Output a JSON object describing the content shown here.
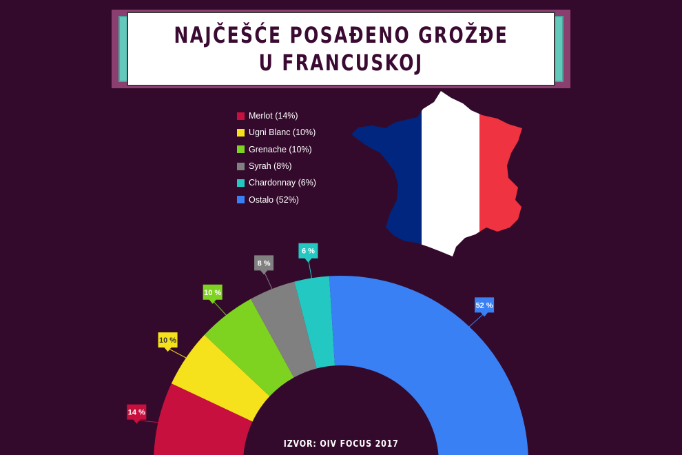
{
  "title": {
    "line1": "NAJČEŠĆE POSAĐENO GROŽĐE",
    "line2": "U FRANCUSKOJ"
  },
  "flag_colors": {
    "blue": "#00267f",
    "white": "#ffffff",
    "red": "#ef3340"
  },
  "source": "IZVOR: OIV FOCUS 2017",
  "chart_data": {
    "type": "pie",
    "variant": "semi-donut",
    "series": [
      {
        "name": "Merlot",
        "legend": "Merlot (14%)",
        "value": 14,
        "label": "14 %",
        "color": "#c8103e"
      },
      {
        "name": "Ugni Blanc",
        "legend": "Ugni Blanc (10%)",
        "value": 10,
        "label": "10 %",
        "color": "#f5e21c"
      },
      {
        "name": "Grenache",
        "legend": "Grenache (10%)",
        "value": 10,
        "label": "10 %",
        "color": "#7ed321"
      },
      {
        "name": "Syrah",
        "legend": "Syrah (8%)",
        "value": 8,
        "label": "8 %",
        "color": "#808080"
      },
      {
        "name": "Chardonnay",
        "legend": "Chardonnay (6%)",
        "value": 6,
        "label": "6 %",
        "color": "#24c8c2"
      },
      {
        "name": "Ostalo",
        "legend": "Ostalo (52%)",
        "value": 52,
        "label": "52 %",
        "color": "#3a80f5"
      }
    ],
    "legend_position": "top-left",
    "title": "NAJČEŠĆE POSAĐENO GROŽĐE U FRANCUSKOJ"
  }
}
